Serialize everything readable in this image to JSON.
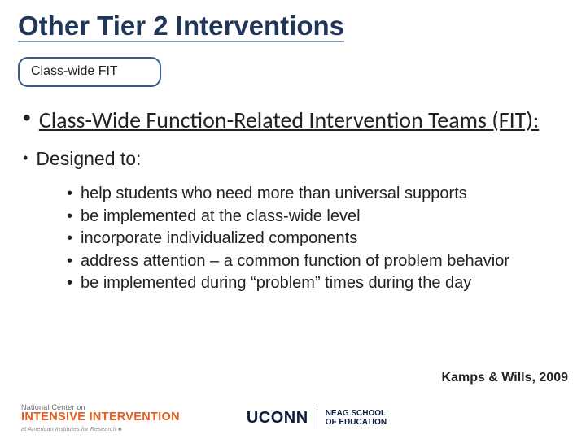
{
  "colors": {
    "title": "#1f3559",
    "title_underline": "#7e97b5",
    "tag_border": "#3a5b86",
    "tag_text": "#222222",
    "body_text": "#222222",
    "orange": "#e65c1a",
    "navy": "#0a1d3f"
  },
  "fontsizes": {
    "title": 33,
    "tag": 16,
    "main_bullet": 28,
    "sub1": 23,
    "sub2": 20,
    "citation": 16
  },
  "title": "Other Tier 2 Interventions",
  "tag": "Class-wide FIT",
  "main_bullet": "Class-Wide Function-Related Intervention Teams (FIT):",
  "sub1": "Designed to:",
  "sub2": [
    "help students who need more than universal supports",
    "be implemented at the class-wide level",
    "incorporate individualized components",
    "address attention – a common function of problem behavior",
    "be implemented during “problem” times during the day"
  ],
  "citation": "Kamps & Wills, 2009",
  "footer": {
    "ncii": {
      "l1": "National Center on",
      "l2": "INTENSIVE INTERVENTION",
      "l3": "at American Institutes for Research ■"
    },
    "uconn": {
      "wordmark": "UCONN",
      "school_l1": "NEAG SCHOOL",
      "school_l2": "OF EDUCATION"
    }
  }
}
